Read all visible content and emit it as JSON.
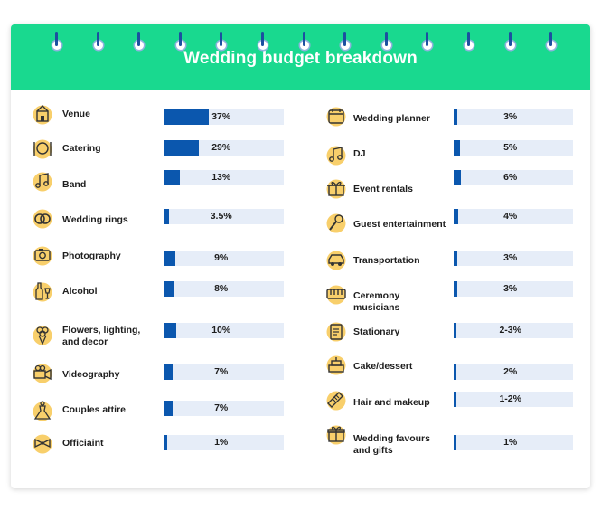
{
  "title": "Wedding budget breakdown",
  "colors": {
    "header": "#19d98f",
    "bar": "#0b57ae",
    "track": "#e6edf8",
    "icon_circle": "#f8cf6b"
  },
  "chart_data": {
    "type": "bar",
    "orientation": "horizontal",
    "title": "Wedding budget breakdown",
    "value_unit": "%",
    "xlim": [
      0,
      100
    ],
    "grid": false,
    "legend": "none",
    "columns": [
      {
        "categories": [
          "Venue",
          "Catering",
          "Band",
          "Wedding rings",
          "Photography",
          "Alcohol",
          "Flowers, lighting, and decor",
          "Videography",
          "Couples attire",
          "Officiaint"
        ],
        "values": [
          37,
          29,
          13,
          3.5,
          9,
          8,
          10,
          7,
          7,
          1
        ],
        "value_labels": [
          "37%",
          "29%",
          "13%",
          "3.5%",
          "9%",
          "8%",
          "10%",
          "7%",
          "7%",
          "1%"
        ],
        "icons": [
          "church-icon",
          "plate-icon",
          "music-note-icon",
          "rings-icon",
          "camera-icon",
          "wine-bottle-icon",
          "bouquet-icon",
          "video-camera-icon",
          "dress-icon",
          "bow-tie-icon"
        ]
      },
      {
        "categories": [
          "Wedding planner",
          "DJ",
          "Event rentals",
          "Guest entertainment",
          "Transportation",
          "Ceremony musicians",
          "Stationary",
          "Cake/dessert",
          "Hair and makeup",
          "Wedding favours and gifts"
        ],
        "values": [
          3,
          5,
          6,
          4,
          3,
          3,
          2.5,
          2,
          1.5,
          1
        ],
        "value_labels": [
          "3%",
          "5%",
          "6%",
          "4%",
          "3%",
          "3%",
          "2-3%",
          "2%",
          "1-2%",
          "1%"
        ],
        "icons": [
          "calendar-icon",
          "music-note-icon",
          "gift-box-icon",
          "microphone-icon",
          "car-icon",
          "keyboard-icon",
          "invitation-icon",
          "cake-icon",
          "comb-icon",
          "gift-icon"
        ]
      }
    ]
  }
}
